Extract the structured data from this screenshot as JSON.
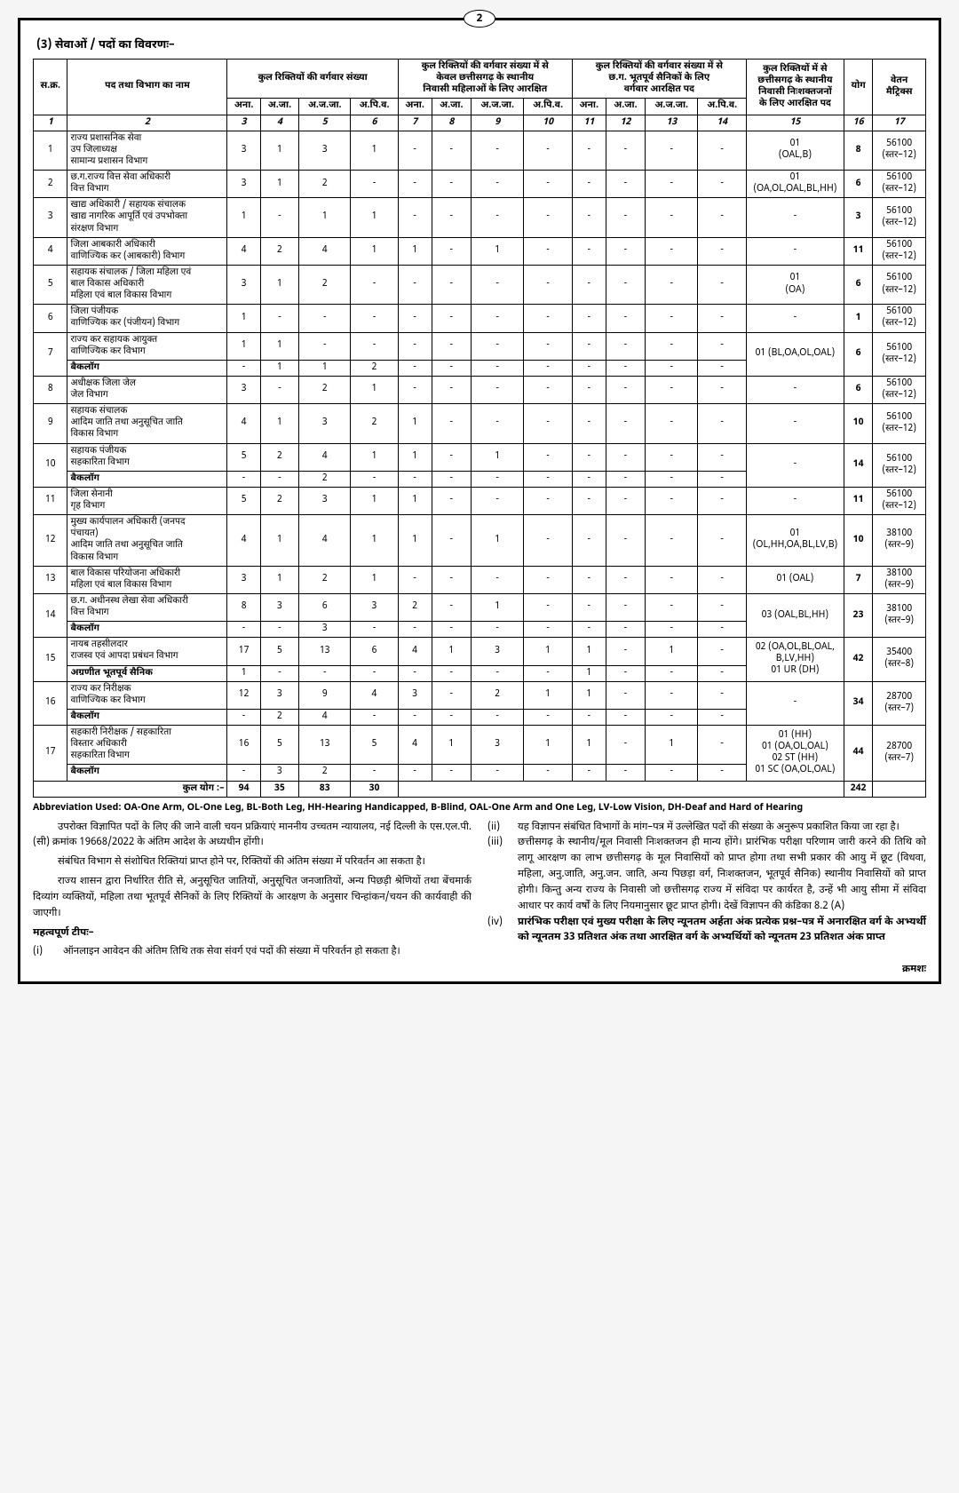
{
  "page_number": "2",
  "section_heading": "(3)   सेवाओं / पदों का विवरणः–",
  "headers": {
    "sn": "स.क्र.",
    "post": "पद तथा विभाग का नाम",
    "total_vac": "कुल रिक्तियों की वर्गवार संख्या",
    "women_res": "कुल रिक्तियों की वर्गवार संख्या में से\nकेवल छत्तीसगढ़ के स्थानीय\nनिवासी महिलाओं के लिए आरक्षित",
    "ex_serv": "कुल रिक्तियों की वर्गवार संख्या में से\nछ.ग. भूतपूर्व सैनिकों के लिए\nवर्गवार आरक्षित पद",
    "disabled": "कुल रिक्तियों में से\nछत्तीसगढ़ के स्थानीय\nनिवासी निःशक्तजनों\nके लिए आरक्षित पद",
    "total": "योग",
    "pay": "वेतन\nमैट्रिक्स",
    "sub": [
      "अना.",
      "अ.जा.",
      "अ.ज.जा.",
      "अ.पि.व."
    ],
    "col_nums": [
      "1",
      "2",
      "3",
      "4",
      "5",
      "6",
      "7",
      "8",
      "9",
      "10",
      "11",
      "12",
      "13",
      "14",
      "15",
      "16",
      "17"
    ]
  },
  "rows": [
    {
      "sn": "1",
      "post": "राज्य प्रशासनिक सेवा\nउप जिलाध्यक्ष\nसामान्य प्रशासन विभाग",
      "v": [
        "3",
        "1",
        "3",
        "1",
        "-",
        "-",
        "-",
        "-",
        "-",
        "-",
        "-",
        "-"
      ],
      "dis": "01\n(OAL,B)",
      "tot": "8",
      "pay": "56100\n(स्तर–12)"
    },
    {
      "sn": "2",
      "post": "छ.ग.राज्य वित्त सेवा अधिकारी\nवित्त विभाग",
      "v": [
        "3",
        "1",
        "2",
        "-",
        "-",
        "-",
        "-",
        "-",
        "-",
        "-",
        "-",
        "-"
      ],
      "dis": "01\n(OA,OL,OAL,BL,HH)",
      "tot": "6",
      "pay": "56100\n(स्तर–12)"
    },
    {
      "sn": "3",
      "post": "खाद्य अधिकारी / सहायक संचालक\nखाद्य नागरिक आपूर्ति एवं उपभोक्ता\nसंरक्षण विभाग",
      "v": [
        "1",
        "-",
        "1",
        "1",
        "-",
        "-",
        "-",
        "-",
        "-",
        "-",
        "-",
        "-"
      ],
      "dis": "-",
      "tot": "3",
      "pay": "56100\n(स्तर–12)"
    },
    {
      "sn": "4",
      "post": "जिला आबकारी अधिकारी\nवाणिज्यिक कर (आबकारी) विभाग",
      "v": [
        "4",
        "2",
        "4",
        "1",
        "1",
        "-",
        "1",
        "-",
        "-",
        "-",
        "-",
        "-"
      ],
      "dis": "-",
      "tot": "11",
      "pay": "56100\n(स्तर–12)"
    },
    {
      "sn": "5",
      "post": "सहायक संचालक / जिला महिला एवं\nबाल विकास अधिकारी\nमहिला एवं बाल विकास विभाग",
      "v": [
        "3",
        "1",
        "2",
        "-",
        "-",
        "-",
        "-",
        "-",
        "-",
        "-",
        "-",
        "-"
      ],
      "dis": "01\n(OA)",
      "tot": "6",
      "pay": "56100\n(स्तर–12)"
    },
    {
      "sn": "6",
      "post": "जिला पंजीयक\nवाणिज्यिक कर (पंजीयन) विभाग",
      "v": [
        "1",
        "-",
        "-",
        "-",
        "-",
        "-",
        "-",
        "-",
        "-",
        "-",
        "-",
        "-"
      ],
      "dis": "-",
      "tot": "1",
      "pay": "56100\n(स्तर–12)"
    },
    {
      "sn": "7",
      "post": "राज्य कर सहायक आयुक्त\nवाणिज्यिक कर विभाग",
      "v": [
        "1",
        "1",
        "-",
        "-",
        "-",
        "-",
        "-",
        "-",
        "-",
        "-",
        "-",
        "-"
      ],
      "dis": "01 (BL,OA,OL,OAL)",
      "tot": "6",
      "pay": "56100\n(स्तर–12)",
      "backlog": [
        "-",
        "1",
        "1",
        "2",
        "-",
        "-",
        "-",
        "-",
        "-",
        "-",
        "-",
        "-"
      ]
    },
    {
      "sn": "8",
      "post": "अधीक्षक जिला जेल\nजेल विभाग",
      "v": [
        "3",
        "-",
        "2",
        "1",
        "-",
        "-",
        "-",
        "-",
        "-",
        "-",
        "-",
        "-"
      ],
      "dis": "-",
      "tot": "6",
      "pay": "56100\n(स्तर–12)"
    },
    {
      "sn": "9",
      "post": "सहायक संचालक\nआदिम जाति तथा अनुसूचित जाति\nविकास  विभाग",
      "v": [
        "4",
        "1",
        "3",
        "2",
        "1",
        "-",
        "-",
        "-",
        "-",
        "-",
        "-",
        "-"
      ],
      "dis": "-",
      "tot": "10",
      "pay": "56100\n(स्तर–12)"
    },
    {
      "sn": "10",
      "post": "सहायक पंजीयक\nसहकारिता विभाग",
      "v": [
        "5",
        "2",
        "4",
        "1",
        "1",
        "-",
        "1",
        "-",
        "-",
        "-",
        "-",
        "-"
      ],
      "dis": "-",
      "tot": "14",
      "pay": "56100\n(स्तर–12)",
      "backlog": [
        "-",
        "-",
        "2",
        "-",
        "-",
        "-",
        "-",
        "-",
        "-",
        "-",
        "-",
        "-"
      ]
    },
    {
      "sn": "11",
      "post": "जिला सेनानी\nगृह विभाग",
      "v": [
        "5",
        "2",
        "3",
        "1",
        "1",
        "-",
        "-",
        "-",
        "-",
        "-",
        "-",
        "-"
      ],
      "dis": "-",
      "tot": "11",
      "pay": "56100\n(स्तर–12)"
    },
    {
      "sn": "12",
      "post": "मुख्य कार्यपालन अधिकारी (जनपद\nपंचायत)\nआदिम जाति तथा अनुसूचित जाति\nविकास विभाग",
      "v": [
        "4",
        "1",
        "4",
        "1",
        "1",
        "-",
        "1",
        "-",
        "-",
        "-",
        "-",
        "-"
      ],
      "dis": "01\n(OL,HH,OA,BL,LV,B)",
      "tot": "10",
      "pay": "38100\n(स्तर–9)"
    },
    {
      "sn": "13",
      "post": "बाल विकास परियोजना अधिकारी\nमहिला एवं बाल विकास विभाग",
      "v": [
        "3",
        "1",
        "2",
        "1",
        "-",
        "-",
        "-",
        "-",
        "-",
        "-",
        "-",
        "-"
      ],
      "dis": "01 (OAL)",
      "tot": "7",
      "pay": "38100\n(स्तर–9)"
    },
    {
      "sn": "14",
      "post": "छ.ग. अधीनस्थ लेखा सेवा अधिकारी\nवित्त विभाग",
      "v": [
        "8",
        "3",
        "6",
        "3",
        "2",
        "-",
        "1",
        "-",
        "-",
        "-",
        "-",
        "-"
      ],
      "dis": "03 (OAL,BL,HH)",
      "tot": "23",
      "pay": "38100\n(स्तर–9)",
      "backlog": [
        "-",
        "-",
        "3",
        "-",
        "-",
        "-",
        "-",
        "-",
        "-",
        "-",
        "-",
        "-"
      ]
    },
    {
      "sn": "15",
      "post": "नायब तहसीलदार\nराजस्व एवं आपदा प्रबंधन विभाग",
      "v": [
        "17",
        "5",
        "13",
        "6",
        "4",
        "1",
        "3",
        "1",
        "1",
        "-",
        "1",
        "-"
      ],
      "dis": "02 (OA,OL,BL,OAL,\nB,LV,HH)\n01 UR (DH)",
      "tot": "42",
      "pay": "35400\n(स्तर–8)",
      "backlog": [
        "1",
        "-",
        "-",
        "-",
        "-",
        "-",
        "-",
        "-",
        "1",
        "-",
        "-",
        "-"
      ],
      "backlog_label": "अग्रणीत भूतपूर्व सैनिक"
    },
    {
      "sn": "16",
      "post": "राज्य कर निरीक्षक\nवाणिज्यिक कर विभाग",
      "v": [
        "12",
        "3",
        "9",
        "4",
        "3",
        "-",
        "2",
        "1",
        "1",
        "-",
        "-",
        "-"
      ],
      "dis": "-",
      "tot": "34",
      "pay": "28700\n(स्तर–7)",
      "backlog": [
        "-",
        "2",
        "4",
        "-",
        "-",
        "-",
        "-",
        "-",
        "-",
        "-",
        "-",
        "-"
      ]
    },
    {
      "sn": "17",
      "post": "सहकारी निरीक्षक / सहकारिता\nविस्तार अधिकारी\nसहकारिता विभाग",
      "v": [
        "16",
        "5",
        "13",
        "5",
        "4",
        "1",
        "3",
        "1",
        "1",
        "-",
        "1",
        "-"
      ],
      "dis": "01 (HH)\n01 (OA,OL,OAL)\n02 ST (HH)\n01 SC (OA,OL,OAL)",
      "tot": "44",
      "pay": "28700\n(स्तर–7)",
      "backlog": [
        "-",
        "3",
        "2",
        "-",
        "-",
        "-",
        "-",
        "-",
        "-",
        "-",
        "-",
        "-"
      ]
    }
  ],
  "backlog_label_default": "बैकलॉग",
  "total_row": {
    "label": "कुल योग :–",
    "v": [
      "94",
      "35",
      "83",
      "30"
    ],
    "tot": "242"
  },
  "abbrev": "Abbreviation Used: OA-One Arm, OL-One Leg, BL-Both Leg, HH-Hearing Handicapped, B-Blind, OAL-One Arm and One Leg, LV-Low Vision, DH-Deaf and Hard of Hearing",
  "notes": {
    "left": {
      "p1": "उपरोक्त विज्ञापित पदों के लिए की जाने वाली चयन प्रक्रियाएं माननीय उच्चतम न्यायालय, नई दिल्ली के एस.एल.पी.(सी) क्रमांक 19668/2022 के अंतिम आदेश के अध्यधीन होंगी।",
      "p2": "संबंधित विभाग से संशोधित रिक्तियां प्राप्त होने पर, रिक्तियों की अंतिम संख्या में परिवर्तन आ सकता है।",
      "p3": "राज्य शासन द्वारा निर्धारित रीति से, अनुसूचित जातियों, अनुसूचित जनजातियों, अन्य पिछड़ी श्रेणियों तथा बेंचमार्क दिव्यांग व्यक्तियों, महिला तथा भूतपूर्व सैनिकों के लिए रिक्तियों के आरक्षण के अनुसार चिन्हांकन/चयन की कार्यवाही की जाएगी।",
      "tip_label": "महत्वपूर्ण टीपः–",
      "i_lbl": "(i)",
      "i": "ऑनलाइन आवेदन की अंतिम तिथि तक सेवा संवर्ग एवं पदों की संख्या में परिवर्तन हो सकता है।"
    },
    "right": {
      "ii_lbl": "(ii)",
      "ii": "यह विज्ञापन संबंधित विभागों के मांग–पत्र में उल्लेखित पदों की संख्या के अनुरूप प्रकाशित किया जा रहा है।",
      "iii_lbl": "(iii)",
      "iii": "छत्तीसगढ़ के स्थानीय/मूल निवासी निःशक्तजन ही मान्य होंगे। प्रारंभिक परीक्षा परिणाम जारी करने की तिथि को लागू आरक्षण का लाभ छत्तीसगढ़ के मूल निवासियों को प्राप्त होगा तथा सभी प्रकार की आयु में छूट (विधवा, महिला, अनु.जाति, अनु.जन. जाति, अन्य पिछड़ा वर्ग, निःशक्तजन, भूतपूर्व सैनिक) स्थानीय निवासियों को प्राप्त होगी। किन्तु अन्य राज्य के निवासी जो छत्तीसगढ़ राज्य में संविदा पर कार्यरत है, उन्हें भी आयु सीमा में संविदा आधार पर कार्य वर्षों के लिए नियमानुसार छूट प्राप्त होगी। देखें विज्ञापन की कंडिका 8.2 (A)",
      "iv_lbl": "(iv)",
      "iv": "प्रारंभिक परीक्षा एवं मुख्य परीक्षा के लिए न्यूनतम अर्हता अंक प्रत्येक प्रश्न–पत्र में अनारक्षित वर्ग के अभ्यर्थी को न्यूनतम 33 प्रतिशत अंक तथा आरक्षित वर्ग के अभ्यर्थियों को न्यूनतम 23 प्रतिशत अंक प्राप्त"
    }
  },
  "footer": "क्रमशः"
}
